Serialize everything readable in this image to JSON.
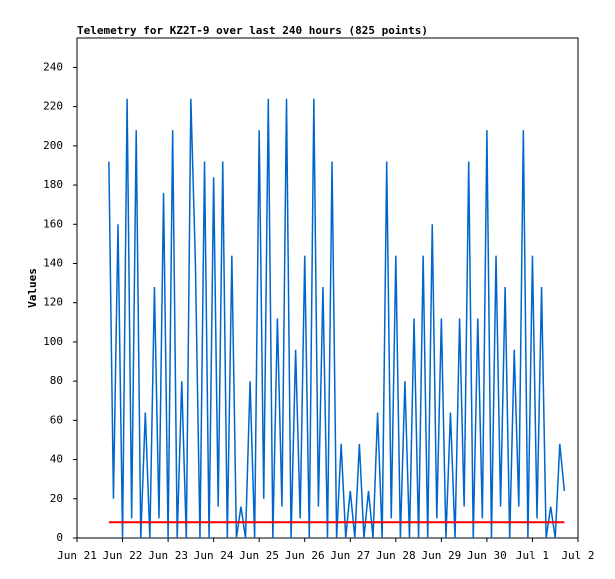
{
  "chart_data": {
    "type": "line",
    "title": "Telemetry for KZ2T-9 over last 240 hours (825 points)",
    "y_label": "Values",
    "xlim": [
      0,
      11
    ],
    "ylim": [
      0,
      255
    ],
    "xticks": [
      {
        "value": 0,
        "label": "Jun 21"
      },
      {
        "value": 1,
        "label": "Jun 22"
      },
      {
        "value": 2,
        "label": "Jun 23"
      },
      {
        "value": 3,
        "label": "Jun 24"
      },
      {
        "value": 4,
        "label": "Jun 25"
      },
      {
        "value": 5,
        "label": "Jun 26"
      },
      {
        "value": 6,
        "label": "Jun 27"
      },
      {
        "value": 7,
        "label": "Jun 28"
      },
      {
        "value": 8,
        "label": "Jun 29"
      },
      {
        "value": 9,
        "label": "Jun 30"
      },
      {
        "value": 10,
        "label": "Jul 1"
      },
      {
        "value": 11,
        "label": "Jul 2"
      }
    ],
    "yticks": [
      0,
      20,
      40,
      60,
      80,
      100,
      120,
      140,
      160,
      180,
      200,
      220,
      240
    ],
    "series": [
      {
        "color": "#0066cc",
        "x": [
          0.7,
          0.8,
          0.9,
          1.0,
          1.1,
          1.2,
          1.3,
          1.4,
          1.5,
          1.6,
          1.7,
          1.8,
          1.9,
          2.0,
          2.1,
          2.2,
          2.3,
          2.4,
          2.5,
          2.6,
          2.7,
          2.8,
          2.9,
          3.0,
          3.1,
          3.2,
          3.3,
          3.4,
          3.5,
          3.6,
          3.7,
          3.8,
          3.9,
          4.0,
          4.1,
          4.2,
          4.3,
          4.4,
          4.5,
          4.6,
          4.7,
          4.8,
          4.9,
          5.0,
          5.1,
          5.2,
          5.3,
          5.4,
          5.5,
          5.6,
          5.7,
          5.8,
          5.9,
          6.0,
          6.1,
          6.2,
          6.3,
          6.4,
          6.5,
          6.6,
          6.7,
          6.8,
          6.9,
          7.0,
          7.1,
          7.2,
          7.3,
          7.4,
          7.5,
          7.6,
          7.7,
          7.8,
          7.9,
          8.0,
          8.1,
          8.2,
          8.3,
          8.4,
          8.5,
          8.6,
          8.7,
          8.8,
          8.9,
          9.0,
          9.1,
          9.2,
          9.3,
          9.4,
          9.5,
          9.6,
          9.7,
          9.8,
          9.9,
          10.0,
          10.1,
          10.2,
          10.3,
          10.4,
          10.5,
          10.6,
          10.7
        ],
        "values": [
          192,
          20,
          160,
          0,
          224,
          10,
          208,
          0,
          64,
          0,
          128,
          10,
          176,
          0,
          208,
          0,
          80,
          0,
          224,
          140,
          0,
          192,
          0,
          184,
          16,
          192,
          0,
          144,
          0,
          16,
          0,
          80,
          0,
          208,
          20,
          224,
          0,
          112,
          16,
          224,
          0,
          96,
          10,
          144,
          0,
          224,
          16,
          128,
          0,
          192,
          0,
          48,
          0,
          24,
          0,
          48,
          0,
          24,
          0,
          64,
          0,
          192,
          10,
          144,
          0,
          80,
          0,
          112,
          0,
          144,
          0,
          160,
          10,
          112,
          0,
          64,
          0,
          112,
          16,
          192,
          0,
          112,
          10,
          208,
          0,
          144,
          16,
          128,
          0,
          96,
          16,
          208,
          0,
          144,
          10,
          128,
          0,
          16,
          0,
          48,
          24
        ]
      },
      {
        "color": "#ff0000",
        "x": [
          0.7,
          10.7
        ],
        "values": [
          8,
          8
        ]
      }
    ]
  }
}
